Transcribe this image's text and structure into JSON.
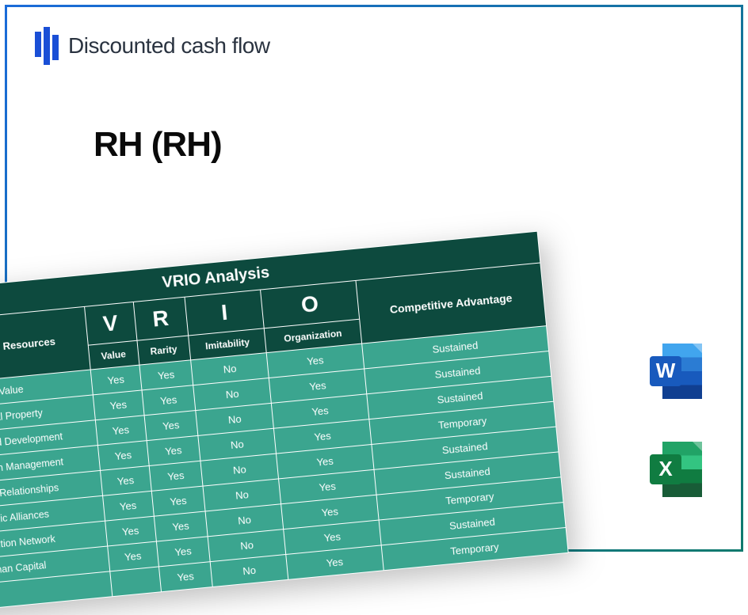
{
  "frame": {
    "border_gradient_from": "#1a6bd9",
    "border_gradient_to": "#0f7a6e",
    "border_width": 3
  },
  "logo": {
    "text": "Discounted cash flow",
    "mark_color": "#1a4fd6",
    "text_color": "#2a3340"
  },
  "title": "RH (RH)",
  "table": {
    "type": "table",
    "rotation_deg": -5.5,
    "header_bg": "#0d4a3e",
    "body_bg": "#3ba58f",
    "border_color": "#ffffff",
    "text_color": "#ffffff",
    "title": "VRIO Analysis",
    "caps_header": "Capabilities or Resources",
    "comp_header": "Competitive Advantage",
    "letters": [
      "V",
      "R",
      "I",
      "O"
    ],
    "subheads": [
      "Value",
      "Rarity",
      "Imitability",
      "Organization"
    ],
    "rows": [
      {
        "label": "Brand Value",
        "v": "Yes",
        "r": "Yes",
        "i": "No",
        "o": "Yes",
        "adv": "Sustained"
      },
      {
        "label": "Intellectual Property",
        "v": "Yes",
        "r": "Yes",
        "i": "No",
        "o": "Yes",
        "adv": "Sustained"
      },
      {
        "label": "Research and Development",
        "v": "Yes",
        "r": "Yes",
        "i": "No",
        "o": "Yes",
        "adv": "Sustained"
      },
      {
        "label": "Supply Chain Management",
        "v": "Yes",
        "r": "Yes",
        "i": "No",
        "o": "Yes",
        "adv": "Temporary"
      },
      {
        "label": "Customer Relationships",
        "v": "Yes",
        "r": "Yes",
        "i": "No",
        "o": "Yes",
        "adv": "Sustained"
      },
      {
        "label": "Strategic Alliances",
        "v": "Yes",
        "r": "Yes",
        "i": "No",
        "o": "Yes",
        "adv": "Sustained"
      },
      {
        "label": "Distribution Network",
        "v": "Yes",
        "r": "Yes",
        "i": "No",
        "o": "Yes",
        "adv": "Temporary"
      },
      {
        "label": "Human Capital",
        "v": "Yes",
        "r": "Yes",
        "i": "No",
        "o": "Yes",
        "adv": "Sustained"
      },
      {
        "label": "",
        "v": "",
        "r": "Yes",
        "i": "No",
        "o": "Yes",
        "adv": "Temporary"
      }
    ]
  },
  "icons": {
    "word": {
      "letter": "W",
      "fold_color": "#2b7cd3",
      "pages": [
        "#41a5ee",
        "#2b7cd3",
        "#185abd",
        "#103f91"
      ],
      "badge": "#185abd"
    },
    "excel": {
      "letter": "X",
      "fold_color": "#33c481",
      "pages": [
        "#21a366",
        "#33c481",
        "#107c41",
        "#185c37"
      ],
      "badge": "#107c41"
    }
  }
}
